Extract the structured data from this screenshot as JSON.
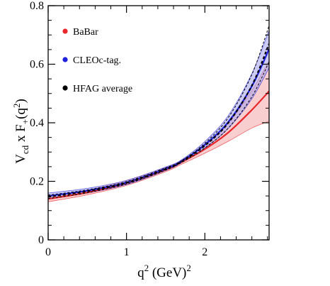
{
  "chart_data": {
    "type": "line",
    "xlim": [
      0,
      2.82
    ],
    "ylim": [
      0,
      0.8
    ],
    "x_ticks": [
      0,
      1,
      2
    ],
    "x_tick_labels": [
      "0",
      "1",
      "2"
    ],
    "y_ticks": [
      0,
      0.2,
      0.4,
      0.6,
      0.8
    ],
    "y_tick_labels": [
      "0",
      "0.2",
      "0.4",
      "0.6",
      "0.8"
    ],
    "xlabel": {
      "base": "q",
      "sup": "2",
      "unit": " (GeV)",
      "unit_sup": "2"
    },
    "ylabel": {
      "v": "V",
      "v_sub": "cd",
      "mid": " x F",
      "f_sub": "+",
      "open": "(q",
      "q_sup": "2",
      "close": ")"
    },
    "legend_position": "top-left",
    "grid": false,
    "series": [
      {
        "name": "BaBar",
        "color": "#e8262b",
        "band_color": "#f4a6a8",
        "x": [
          0,
          0.5,
          1.0,
          1.5,
          1.7,
          2.0,
          2.3,
          2.6,
          2.82
        ],
        "y": [
          0.14,
          0.162,
          0.194,
          0.24,
          0.265,
          0.31,
          0.367,
          0.444,
          0.508
        ],
        "upper": [
          0.15,
          0.17,
          0.203,
          0.247,
          0.271,
          0.325,
          0.4,
          0.51,
          0.612
        ],
        "lower": [
          0.13,
          0.154,
          0.186,
          0.233,
          0.258,
          0.296,
          0.337,
          0.382,
          0.405
        ]
      },
      {
        "name": "CLEOc-tag.",
        "color": "#1f1fdc",
        "band_color": "#a9a9ee",
        "x": [
          0,
          0.5,
          1.0,
          1.5,
          1.7,
          2.0,
          2.3,
          2.6,
          2.82
        ],
        "y": [
          0.15,
          0.168,
          0.196,
          0.243,
          0.268,
          0.325,
          0.403,
          0.525,
          0.652
        ],
        "upper": [
          0.16,
          0.176,
          0.203,
          0.249,
          0.273,
          0.336,
          0.425,
          0.568,
          0.716
        ],
        "lower": [
          0.14,
          0.16,
          0.189,
          0.237,
          0.263,
          0.314,
          0.381,
          0.482,
          0.588
        ]
      },
      {
        "name": "HFAG average",
        "color": "#000000",
        "band_color": "#000000",
        "x": [
          0,
          0.5,
          1.0,
          1.5,
          1.7,
          2.0,
          2.3,
          2.6,
          2.82
        ],
        "y": [
          0.147,
          0.166,
          0.195,
          0.242,
          0.267,
          0.322,
          0.4,
          0.527,
          0.67
        ],
        "upper": [
          0.153,
          0.171,
          0.199,
          0.246,
          0.27,
          0.33,
          0.418,
          0.565,
          0.732
        ],
        "lower": [
          0.141,
          0.161,
          0.191,
          0.238,
          0.264,
          0.314,
          0.382,
          0.489,
          0.608
        ]
      }
    ]
  }
}
